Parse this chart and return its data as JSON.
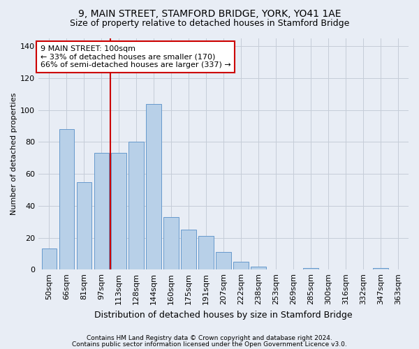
{
  "title1": "9, MAIN STREET, STAMFORD BRIDGE, YORK, YO41 1AE",
  "title2": "Size of property relative to detached houses in Stamford Bridge",
  "xlabel": "Distribution of detached houses by size in Stamford Bridge",
  "ylabel": "Number of detached properties",
  "categories": [
    "50sqm",
    "66sqm",
    "81sqm",
    "97sqm",
    "113sqm",
    "128sqm",
    "144sqm",
    "160sqm",
    "175sqm",
    "191sqm",
    "207sqm",
    "222sqm",
    "238sqm",
    "253sqm",
    "269sqm",
    "285sqm",
    "300sqm",
    "316sqm",
    "332sqm",
    "347sqm",
    "363sqm"
  ],
  "values": [
    13,
    88,
    55,
    73,
    73,
    80,
    104,
    33,
    25,
    21,
    11,
    5,
    2,
    0,
    0,
    1,
    0,
    0,
    0,
    1,
    0
  ],
  "bar_color": "#b8d0e8",
  "bar_edge_color": "#6699cc",
  "background_color": "#e8edf5",
  "grid_color": "#c5cdd8",
  "vline_x": 3.5,
  "vline_color": "#cc0000",
  "annotation_text": "9 MAIN STREET: 100sqm\n← 33% of detached houses are smaller (170)\n66% of semi-detached houses are larger (337) →",
  "annotation_box_color": "#ffffff",
  "annotation_box_edge": "#cc0000",
  "footer1": "Contains HM Land Registry data © Crown copyright and database right 2024.",
  "footer2": "Contains public sector information licensed under the Open Government Licence v3.0.",
  "ylim": [
    0,
    145
  ],
  "yticks": [
    0,
    20,
    40,
    60,
    80,
    100,
    120,
    140
  ],
  "title1_fontsize": 10,
  "title2_fontsize": 9,
  "xlabel_fontsize": 9,
  "ylabel_fontsize": 8,
  "tick_fontsize": 8,
  "annot_fontsize": 8,
  "footer_fontsize": 6.5
}
